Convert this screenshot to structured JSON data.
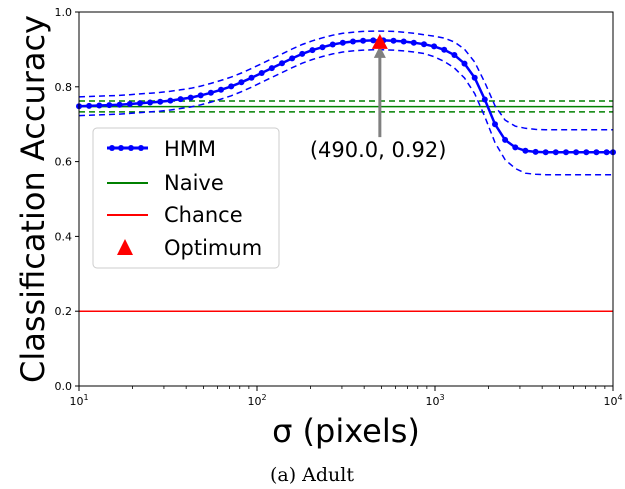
{
  "chart_data": {
    "type": "line",
    "xscale": "log",
    "xlim": [
      10,
      10000
    ],
    "ylim": [
      0.0,
      1.0
    ],
    "xlabel": "σ (pixels)",
    "ylabel": "Classification Accuracy",
    "caption": "(a) Adult",
    "grid": false,
    "legend_placement": "center-left",
    "xticks": [
      {
        "base": "10",
        "exp": "1"
      },
      {
        "base": "10",
        "exp": "2"
      },
      {
        "base": "10",
        "exp": "3"
      },
      {
        "base": "10",
        "exp": "4"
      }
    ],
    "yticks": [
      "0.0",
      "0.2",
      "0.4",
      "0.6",
      "0.8",
      "1.0"
    ],
    "ytick_values": [
      0.0,
      0.2,
      0.4,
      0.6,
      0.8,
      1.0
    ],
    "hmm": {
      "name": "HMM",
      "color": "#0000ff",
      "x": [
        10,
        11.4,
        13.0,
        14.8,
        16.9,
        19.3,
        22.0,
        25.1,
        28.6,
        32.6,
        37.2,
        42.4,
        48.3,
        55.1,
        62.8,
        71.6,
        81.7,
        93.1,
        106.2,
        121.1,
        138.1,
        157.4,
        179.5,
        204.7,
        233.4,
        266.1,
        303.4,
        346.0,
        394.5,
        449.8,
        512.9,
        584.8,
        666.8,
        760.3,
        866.9,
        988.5,
        1127.1,
        1285.2,
        1465.4,
        1670.9,
        1905.3,
        2172.5,
        2477.1,
        2824.5,
        3220.6,
        3672.3,
        4187.3,
        4774.5,
        5444.1,
        6207.6,
        7078.1,
        8070.8,
        9202.6,
        10000
      ],
      "y": [
        0.748,
        0.749,
        0.75,
        0.751,
        0.752,
        0.754,
        0.756,
        0.758,
        0.76,
        0.763,
        0.767,
        0.771,
        0.777,
        0.784,
        0.792,
        0.801,
        0.812,
        0.824,
        0.837,
        0.85,
        0.863,
        0.876,
        0.888,
        0.898,
        0.906,
        0.913,
        0.918,
        0.921,
        0.923,
        0.924,
        0.924,
        0.923,
        0.921,
        0.918,
        0.914,
        0.908,
        0.899,
        0.885,
        0.862,
        0.824,
        0.766,
        0.7,
        0.658,
        0.638,
        0.629,
        0.626,
        0.625,
        0.625,
        0.625,
        0.625,
        0.625,
        0.625,
        0.625,
        0.625
      ],
      "ci_half_width_low_sigma": 0.025,
      "ci_half_width_high_sigma": 0.06
    },
    "naive": {
      "name": "Naive",
      "color": "#008000",
      "y": 0.747,
      "ci": [
        0.733,
        0.762
      ]
    },
    "chance": {
      "name": "Chance",
      "color": "#ff0000",
      "y": 0.2
    },
    "optimum": {
      "name": "Optimum",
      "color": "#ff0000",
      "x": 490.0,
      "y": 0.92
    },
    "annotation": {
      "text": "(490.0, 0.92)",
      "x": 490.0,
      "y": 0.92,
      "text_x": 490.0,
      "text_y": 0.66,
      "arrow_color": "#808080"
    }
  }
}
